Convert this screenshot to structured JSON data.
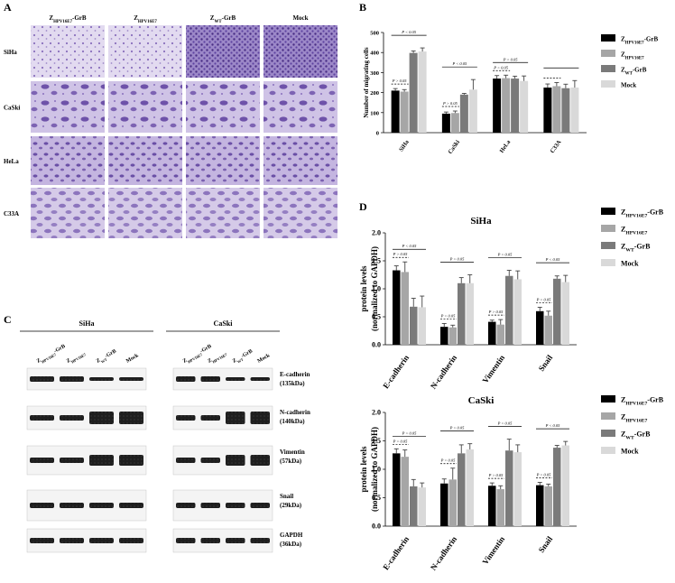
{
  "panels": {
    "a": {
      "letter": "A",
      "columns": [
        "ZHPV16E7-GrB",
        "ZHPV16E7",
        "ZWT-GrB",
        "Mock"
      ],
      "rows": [
        "SiHa",
        "CaSki",
        "HeLa",
        "C33A"
      ]
    },
    "b": {
      "letter": "B"
    },
    "c": {
      "letter": "C",
      "groups": [
        "SiHa",
        "CaSki"
      ],
      "lanes": [
        "ZHPV16E7-GrB",
        "ZHPV16E7",
        "ZWT-GrB",
        "Mock"
      ],
      "bands": [
        "E-cadherin\n(135kDa)",
        "N-cadherin\n(140kDa)",
        "Vimentin\n(57kDa)",
        "Snail\n(29kDa)",
        "GAPDH\n(36kDa)"
      ]
    },
    "d": {
      "letter": "D"
    }
  },
  "colors": {
    "s1": "#000000",
    "s2": "#a6a6a6",
    "s3": "#7a7a7a",
    "s4": "#d9d9d9",
    "cell": "#9a84c6",
    "band": "#2a2a2a"
  },
  "chart_data": [
    {
      "type": "bar",
      "title": "",
      "xlabel": "",
      "ylabel": "Number of migrating cells",
      "ylim": [
        0,
        500
      ],
      "yticks": [
        0,
        100,
        200,
        300,
        400,
        500
      ],
      "categories": [
        "SiHa",
        "CaSki",
        "HeLa",
        "C33A"
      ],
      "series": [
        {
          "name": "ZHPV16E7-GrB",
          "values": [
            210,
            95,
            270,
            225
          ],
          "errors": [
            10,
            8,
            15,
            18
          ]
        },
        {
          "name": "ZHPV16E7",
          "values": [
            205,
            98,
            272,
            232
          ],
          "errors": [
            10,
            10,
            15,
            18
          ]
        },
        {
          "name": "ZWT-GrB",
          "values": [
            398,
            190,
            270,
            222
          ],
          "errors": [
            10,
            6,
            12,
            20
          ]
        },
        {
          "name": "Mock",
          "values": [
            405,
            215,
            258,
            225
          ],
          "errors": [
            18,
            50,
            25,
            35
          ]
        }
      ],
      "annotations": [
        "P < 0.05",
        "P > 0.05",
        "P < 0.05",
        "P > 0.05",
        "P > 0.05",
        "P > 0.05"
      ],
      "legend": "right"
    },
    {
      "type": "bar",
      "title": "SiHa",
      "xlabel": "",
      "ylabel": "protein levels\n(normalized to GAPDH)",
      "ylim": [
        0,
        2.0
      ],
      "yticks": [
        0.0,
        0.5,
        1.0,
        1.5,
        2.0
      ],
      "categories": [
        "E-cadherin",
        "N-cadherin",
        "Vimentin",
        "Snail"
      ],
      "series": [
        {
          "name": "ZHPV16E7-GrB",
          "values": [
            1.33,
            0.32,
            0.41,
            0.6
          ],
          "errors": [
            0.08,
            0.06,
            0.03,
            0.07
          ]
        },
        {
          "name": "ZHPV16E7",
          "values": [
            1.3,
            0.31,
            0.36,
            0.52
          ],
          "errors": [
            0.18,
            0.04,
            0.09,
            0.08
          ]
        },
        {
          "name": "ZWT-GrB",
          "values": [
            0.68,
            1.1,
            1.23,
            1.18
          ],
          "errors": [
            0.15,
            0.1,
            0.1,
            0.05
          ]
        },
        {
          "name": "Mock",
          "values": [
            0.67,
            1.1,
            1.17,
            1.12
          ],
          "errors": [
            0.2,
            0.15,
            0.15,
            0.12
          ]
        }
      ],
      "annotations": [
        "P < 0.05",
        "P > 0.05",
        "P < 0.05",
        "P > 0.05",
        "P < 0.05",
        "P > 0.05",
        "P < 0.05",
        "P > 0.05"
      ],
      "legend": "right"
    },
    {
      "type": "bar",
      "title": "CaSki",
      "xlabel": "",
      "ylabel": "protein levels\n(normalized to GAPDH)",
      "ylim": [
        0,
        2.0
      ],
      "yticks": [
        0.0,
        0.5,
        1.0,
        1.5,
        2.0
      ],
      "categories": [
        "E-cadherin",
        "N-cadherin",
        "Vimentin",
        "Snail"
      ],
      "series": [
        {
          "name": "ZHPV16E7-GrB",
          "values": [
            1.28,
            0.75,
            0.71,
            0.72
          ],
          "errors": [
            0.08,
            0.08,
            0.05,
            0.05
          ]
        },
        {
          "name": "ZHPV16E7",
          "values": [
            1.22,
            0.82,
            0.65,
            0.7
          ],
          "errors": [
            0.12,
            0.2,
            0.06,
            0.04
          ]
        },
        {
          "name": "ZWT-GrB",
          "values": [
            0.7,
            1.28,
            1.33,
            1.38
          ],
          "errors": [
            0.12,
            0.15,
            0.2,
            0.04
          ]
        },
        {
          "name": "Mock",
          "values": [
            0.68,
            1.35,
            1.3,
            1.42
          ],
          "errors": [
            0.08,
            0.1,
            0.13,
            0.07
          ]
        }
      ],
      "annotations": [
        "P < 0.05",
        "P > 0.05",
        "P < 0.05",
        "P > 0.05",
        "P < 0.05",
        "P > 0.05",
        "P < 0.05",
        "P > 0.05"
      ],
      "legend": "right"
    }
  ]
}
